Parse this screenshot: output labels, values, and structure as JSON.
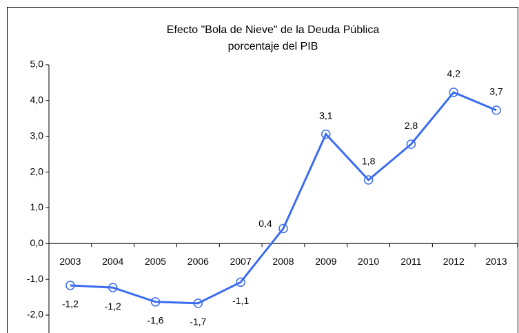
{
  "chart_data": {
    "type": "line",
    "title": "Efecto \"Bola de Nieve\" de la Deuda Pública",
    "subtitle": "porcentaje del PIB",
    "categories": [
      "2003",
      "2004",
      "2005",
      "2006",
      "2007",
      "2008",
      "2009",
      "2010",
      "2011",
      "2012",
      "2013"
    ],
    "series": [
      {
        "color": "#3b6cf0",
        "values": [
          -1.17,
          -1.23,
          -1.63,
          -1.67,
          -1.08,
          0.42,
          3.06,
          1.78,
          2.78,
          4.23,
          3.73
        ],
        "value_labels": [
          "-1,2",
          "-1,2",
          "-1,6",
          "-1,7",
          "-1,1",
          "0,4",
          "3,1",
          "1,8",
          "2,8",
          "4,2",
          "3,7"
        ]
      }
    ],
    "ylim": [
      -2,
      5
    ],
    "yticks": [
      {
        "value": -2,
        "label": "-2,0"
      },
      {
        "value": -1,
        "label": "-1,0"
      },
      {
        "value": 0,
        "label": "0,0"
      },
      {
        "value": 1,
        "label": "1,0"
      },
      {
        "value": 2,
        "label": "2,0"
      },
      {
        "value": 3,
        "label": "3,0"
      },
      {
        "value": 4,
        "label": "4,0"
      },
      {
        "value": 5,
        "label": "5,0"
      }
    ],
    "grid": false
  }
}
